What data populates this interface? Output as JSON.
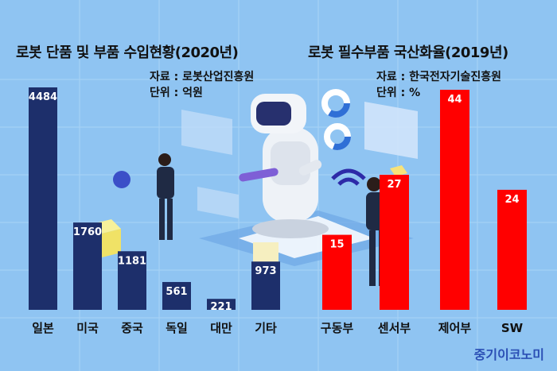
{
  "brand": "중기이코노미",
  "colors": {
    "background": "#8fc4f2",
    "left_bar": "#1d2f6b",
    "right_bar": "#ff0000"
  },
  "chart_data": [
    {
      "type": "bar",
      "title": "로봇 단품 및 부품 수입현황(2020년)",
      "source": "자료 : 로봇산업진흥원",
      "unit": "단위 : 억원",
      "categories": [
        "일본",
        "미국",
        "중국",
        "독일",
        "대만",
        "기타"
      ],
      "values": [
        4484,
        1760,
        1181,
        561,
        221,
        973
      ],
      "value_labels": [
        "4484",
        "1760",
        "1181",
        "561",
        "221",
        "973"
      ],
      "color": "#1d2f6b"
    },
    {
      "type": "bar",
      "title": "로봇 필수부품 국산화율(2019년)",
      "source": "자료 : 한국전자기술진흥원",
      "unit": "단위 : %",
      "categories": [
        "구동부",
        "센서부",
        "제어부",
        "SW"
      ],
      "values": [
        15,
        27,
        44,
        24
      ],
      "value_labels": [
        "15",
        "27",
        "44",
        "24"
      ],
      "color": "#ff0000"
    }
  ]
}
